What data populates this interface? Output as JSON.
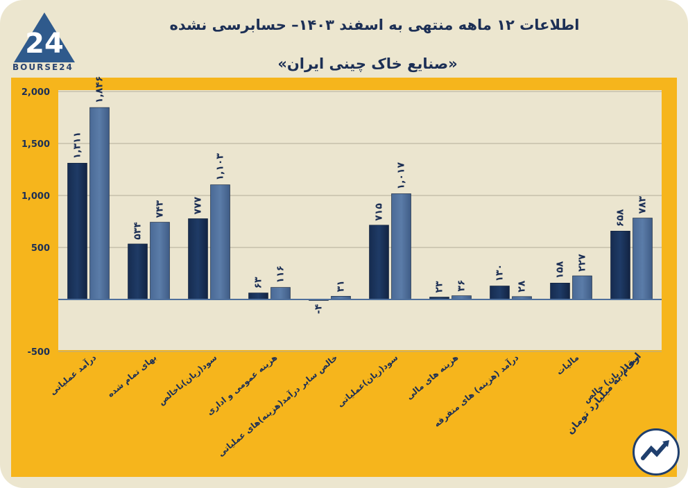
{
  "header": {
    "title": "اطلاعات ۱۲ ماهه منتهی به اسفند ۱۴۰۳– حسابرسی نشده",
    "subtitle": "«صنایع خاک چینی ایران»",
    "logo_text": "BOURSE24",
    "logo_mark": "24"
  },
  "footer": {
    "note": "ارقام به میلیارد تومان"
  },
  "colors": {
    "series_a": "#1f3b66",
    "series_b": "#5b7ca8",
    "panel": "#f6b51c",
    "plot_bg": "#ebe5cf",
    "text": "#1c2f55"
  },
  "chart_data": {
    "type": "bar",
    "categories": [
      "درآمد عملیاتی",
      "بهای تمام شده",
      "سود(زیان)ناخالص",
      "هزینه عمومی و اداری",
      "خالص سایر درآمد(هزینه)های عملیاتی",
      "سود(زیان)عملیاتی",
      "هزینه های مالی",
      "درآمد (هزینه) های متفرقه",
      "مالیات",
      "سود(زیان) خالص"
    ],
    "series": [
      {
        "values": [
          1311,
          534,
          777,
          63,
          -4,
          715,
          23,
          130,
          158,
          658
        ]
      },
      {
        "values": [
          1846,
          743,
          1103,
          116,
          31,
          1017,
          36,
          28,
          227,
          783
        ]
      }
    ],
    "data_labels": [
      [
        "۱,۳۱۱",
        "۵۳۴",
        "۷۷۷",
        "۶۳",
        "-۴",
        "۷۱۵",
        "۲۳",
        "۱۳۰",
        "۱۵۸",
        "۶۵۸"
      ],
      [
        "۱,۸۴۶",
        "۷۴۳",
        "۱,۱۰۳",
        "۱۱۶",
        "۳۱",
        "۱,۰۱۷",
        "۳۶",
        "۲۸",
        "۲۲۷",
        "۷۸۳"
      ]
    ],
    "yticks": [
      "2,000",
      "1,500",
      "1,000",
      "500",
      "",
      "-500"
    ],
    "ytick_values": [
      2000,
      1500,
      1000,
      500,
      0,
      -500
    ],
    "ylim": [
      -500,
      2000
    ],
    "grid": true
  }
}
